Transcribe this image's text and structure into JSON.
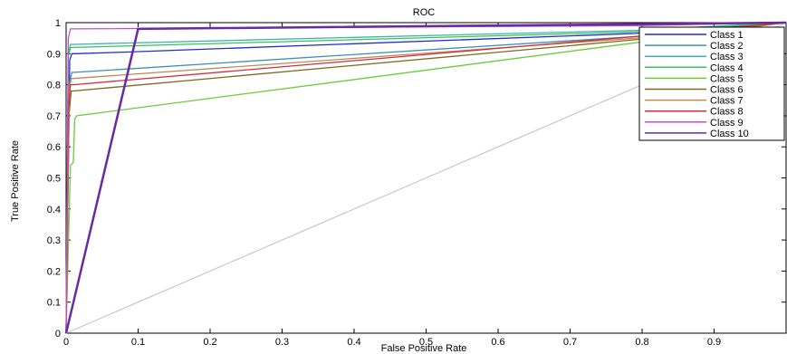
{
  "chart_data": {
    "type": "line",
    "title": "ROC",
    "xlabel": "False Positive Rate",
    "ylabel": "True Positive Rate",
    "xlim": [
      0,
      1
    ],
    "ylim": [
      0,
      1
    ],
    "xticks": [
      "0",
      "0.1",
      "0.2",
      "0.3",
      "0.4",
      "0.5",
      "0.6",
      "0.7",
      "0.8",
      "0.9"
    ],
    "xtick_values": [
      0,
      0.1,
      0.2,
      0.3,
      0.4,
      0.5,
      0.6,
      0.7,
      0.8,
      0.9
    ],
    "yticks": [
      "0",
      "0.1",
      "0.2",
      "0.3",
      "0.4",
      "0.5",
      "0.6",
      "0.7",
      "0.8",
      "0.9",
      "1"
    ],
    "ytick_values": [
      0,
      0.1,
      0.2,
      0.3,
      0.4,
      0.5,
      0.6,
      0.7,
      0.8,
      0.9,
      1
    ],
    "grid": false,
    "legend_position": "top-right",
    "reference_line": {
      "x": [
        0,
        1
      ],
      "y": [
        0,
        1
      ],
      "color": "#c8c8c8"
    },
    "series": [
      {
        "name": "Class 1",
        "color": "#1f2ecc",
        "x": [
          0,
          0.005,
          0.008,
          0.012,
          0.08,
          0.79,
          1
        ],
        "y": [
          0,
          0.88,
          0.9,
          0.9,
          0.905,
          0.965,
          1
        ]
      },
      {
        "name": "Class 2",
        "color": "#3c8fb3",
        "x": [
          0,
          0.004,
          0.008,
          0.012,
          0.79,
          1
        ],
        "y": [
          0,
          0.8,
          0.84,
          0.84,
          0.955,
          1
        ]
      },
      {
        "name": "Class 3",
        "color": "#3fb3a8",
        "x": [
          0,
          0.003,
          0.006,
          0.01,
          0.79,
          1
        ],
        "y": [
          0,
          0.9,
          0.93,
          0.93,
          0.975,
          1
        ]
      },
      {
        "name": "Class 4",
        "color": "#33c45a",
        "x": [
          0,
          0.003,
          0.006,
          0.01,
          0.79,
          1
        ],
        "y": [
          0,
          0.89,
          0.92,
          0.92,
          0.97,
          1
        ]
      },
      {
        "name": "Class 5",
        "color": "#6acc3a",
        "x": [
          0,
          0.006,
          0.01,
          0.012,
          0.015,
          0.79,
          1
        ],
        "y": [
          0,
          0.54,
          0.55,
          0.69,
          0.7,
          0.935,
          1
        ]
      },
      {
        "name": "Class 6",
        "color": "#7a6a1c",
        "x": [
          0,
          0.004,
          0.007,
          0.01,
          0.79,
          1
        ],
        "y": [
          0,
          0.7,
          0.78,
          0.78,
          0.945,
          1
        ]
      },
      {
        "name": "Class 7",
        "color": "#c08a55",
        "x": [
          0,
          0.004,
          0.007,
          0.01,
          0.79,
          1
        ],
        "y": [
          0,
          0.78,
          0.82,
          0.82,
          0.95,
          1
        ]
      },
      {
        "name": "Class 8",
        "color": "#d42c3c",
        "x": [
          0,
          0.003,
          0.006,
          0.01,
          0.79,
          1
        ],
        "y": [
          0,
          0.72,
          0.8,
          0.8,
          0.955,
          1
        ]
      },
      {
        "name": "Class 9",
        "color": "#c24fc9",
        "x": [
          0,
          0.003,
          0.006,
          0.01,
          0.79,
          1
        ],
        "y": [
          0,
          0.95,
          0.98,
          0.98,
          0.99,
          1
        ]
      },
      {
        "name": "Class 10",
        "color": "#6a2aa0",
        "x": [
          0,
          0.1,
          0.79,
          1
        ],
        "y": [
          0,
          0.98,
          0.995,
          1
        ]
      }
    ]
  }
}
